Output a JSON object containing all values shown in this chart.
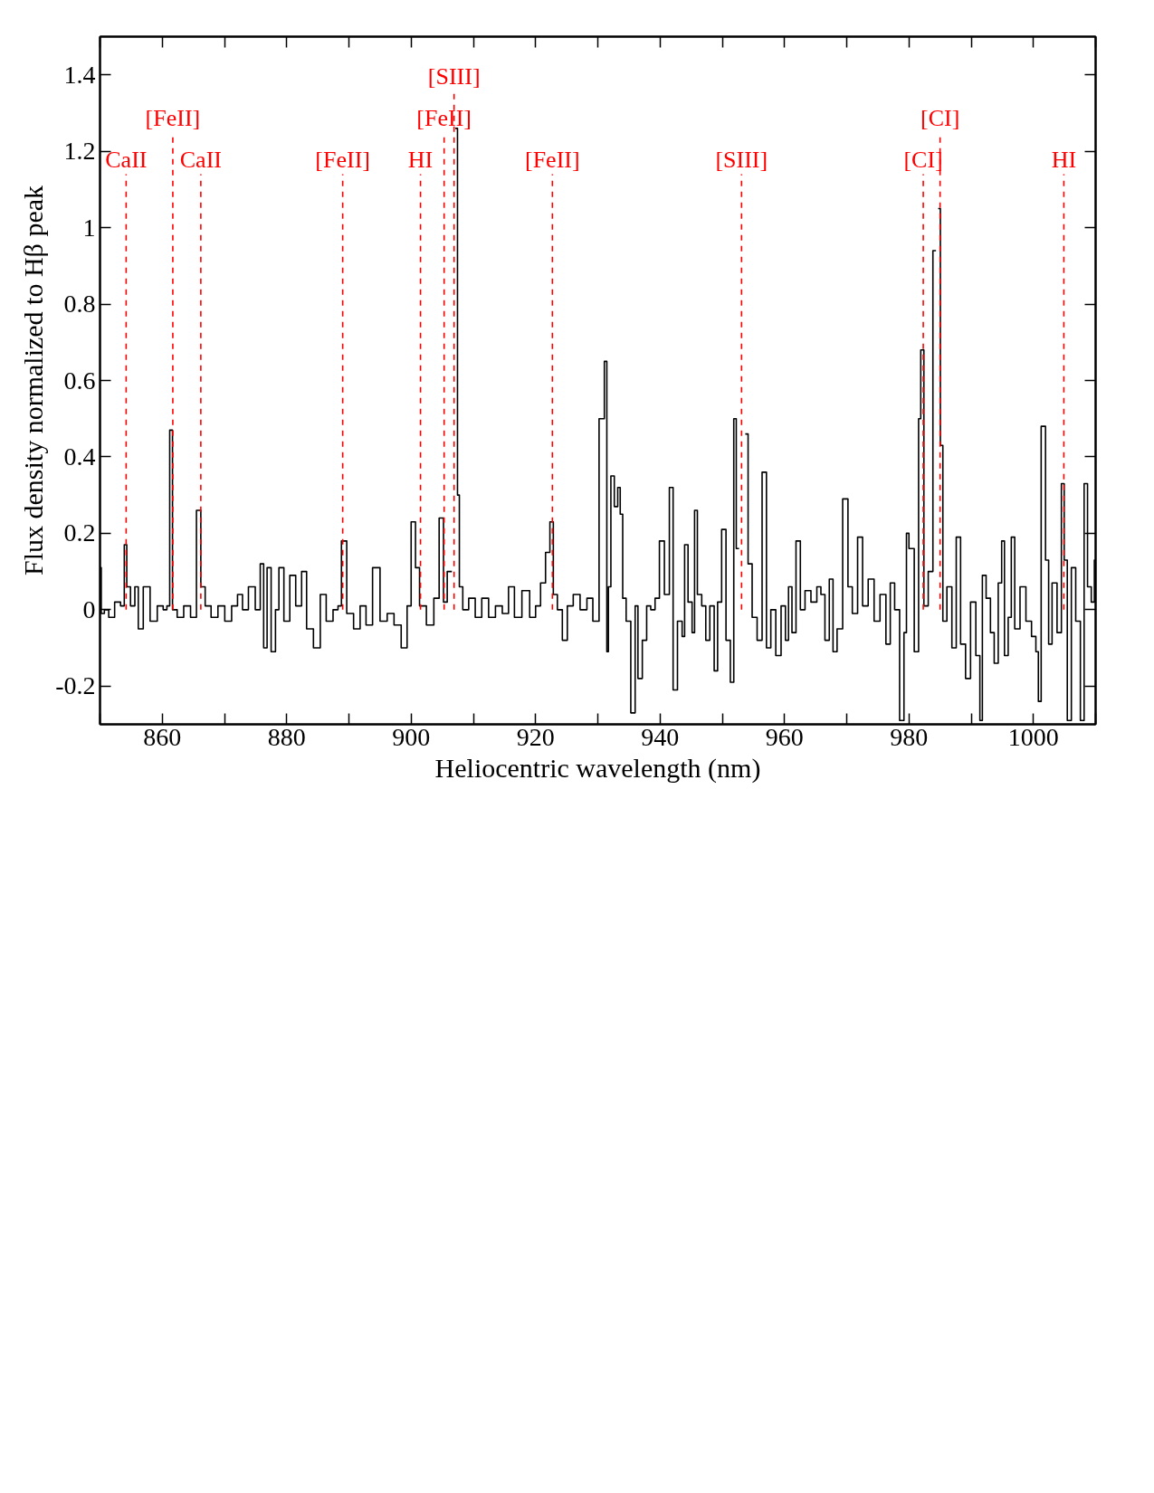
{
  "chart_data": {
    "type": "step",
    "xlabel": "Heliocentric wavelength (nm)",
    "ylabel": "Flux density normalized to Hβ peak",
    "xlim": [
      850,
      1010
    ],
    "ylim": [
      -0.3,
      1.5
    ],
    "xticks": [
      {
        "value": 850,
        "label": null
      },
      860,
      {
        "value": 870,
        "label": null
      },
      880,
      {
        "value": 890,
        "label": null
      },
      900,
      {
        "value": 910,
        "label": null
      },
      920,
      {
        "value": 930,
        "label": null
      },
      940,
      {
        "value": 950,
        "label": null
      },
      960,
      {
        "value": 970,
        "label": null
      },
      980,
      {
        "value": 990,
        "label": null
      },
      1000,
      {
        "value": 1010,
        "label": null
      }
    ],
    "yticks": [
      -0.2,
      0,
      0.2,
      0.4,
      0.6,
      0.8,
      1,
      1.2,
      1.4
    ],
    "grid": false,
    "series": [
      {
        "color": "#000000",
        "x": [
          850.0,
          850.4,
          851.0,
          851.8,
          852.9,
          853.7,
          854.1,
          854.5,
          855.3,
          855.9,
          856.4,
          857.5,
          858.6,
          859.8,
          860.5,
          861.0,
          861.4,
          861.9,
          862.9,
          864.0,
          865.1,
          865.9,
          866.5,
          867.3,
          868.4,
          869.5,
          870.6,
          871.7,
          872.5,
          873.3,
          874.4,
          875.5,
          876.0,
          876.6,
          877.1,
          877.9,
          878.5,
          879.0,
          880.1,
          880.9,
          882.0,
          882.8,
          883.6,
          885.0,
          885.8,
          886.9,
          888.0,
          888.5,
          889.1,
          890.2,
          891.3,
          892.3,
          893.2,
          894.4,
          895.6,
          896.7,
          897.8,
          899.0,
          899.7,
          900.3,
          901.1,
          901.6,
          903.3,
          904.0,
          905.0,
          905.4,
          906.2,
          906.9,
          907.3,
          907.6,
          907.9,
          908.7,
          909.8,
          910.8,
          911.9,
          913.0,
          914.1,
          915.2,
          916.1,
          917.1,
          918.5,
          919.6,
          920.4,
          921.2,
          922.0,
          922.6,
          923.1,
          923.9,
          924.7,
          925.5,
          926.6,
          927.7,
          928.8,
          929.6,
          930.8,
          931.3,
          931.6,
          931.8,
          932.4,
          932.9,
          933.5,
          933.7,
          934.3,
          934.8,
          935.8,
          936.2,
          936.7,
          937.6,
          938.1,
          938.9,
          939.5,
          940.3,
          941.1,
          941.9,
          942.3,
          943.3,
          943.8,
          944.1,
          944.9,
          945.4,
          945.7,
          946.3,
          947.1,
          947.6,
          948.4,
          949.0,
          949.5,
          950.3,
          950.9,
          951.7,
          952.0,
          952.5,
          952.9,
          953.5,
          953.9,
          954.4,
          955.2,
          956.0,
          956.8,
          957.4,
          958.2,
          959.0,
          959.9,
          960.4,
          960.9,
          961.5,
          962.2,
          962.9,
          963.7,
          964.8,
          965.6,
          966.1,
          966.9,
          967.5,
          968.1,
          968.8,
          969.9,
          970.5,
          971.3,
          972.2,
          972.9,
          974.0,
          974.8,
          975.9,
          976.7,
          977.3,
          978.1,
          978.9,
          979.5,
          979.7,
          980.3,
          981.4,
          981.7,
          982.1,
          982.7,
          983.5,
          984.2,
          984.5,
          984.9,
          985.2,
          985.7,
          986.5,
          987.3,
          987.9,
          988.7,
          989.5,
          990.3,
          991.2,
          991.6,
          992.0,
          992.8,
          993.4,
          994.0,
          994.7,
          995.1,
          995.6,
          996.3,
          996.6,
          997.4,
          998.3,
          999.3,
          1000.1,
          1000.7,
          1000.9,
          1001.6,
          1002.3,
          1002.6,
          1003.4,
          1004.2,
          1004.8,
          1005.1,
          1005.8,
          1006.4,
          1007.2,
          1007.9,
          1008.4,
          1009.0,
          1009.6,
          1010.0
        ],
        "values": [
          0.11,
          -0.01,
          0.0,
          -0.02,
          0.02,
          0.01,
          0.17,
          0.06,
          0.01,
          0.06,
          -0.05,
          0.06,
          -0.03,
          0.01,
          0.0,
          0.01,
          0.47,
          0.0,
          -0.02,
          0.01,
          -0.02,
          0.26,
          0.06,
          0.01,
          -0.02,
          0.01,
          -0.03,
          0.01,
          0.04,
          0.0,
          0.06,
          0.0,
          0.12,
          -0.1,
          0.11,
          -0.11,
          0.0,
          0.11,
          -0.03,
          0.09,
          0.01,
          0.1,
          -0.05,
          -0.1,
          0.04,
          -0.03,
          0.0,
          0.01,
          0.18,
          -0.01,
          -0.05,
          0.01,
          -0.04,
          0.11,
          -0.03,
          -0.01,
          -0.04,
          -0.1,
          0.01,
          0.23,
          0.11,
          0.01,
          -0.04,
          0.03,
          0.24,
          0.02,
          0.1,
          null,
          1.26,
          0.3,
          0.06,
          0.0,
          0.03,
          -0.02,
          0.03,
          -0.02,
          0.01,
          -0.01,
          0.06,
          -0.02,
          0.05,
          -0.02,
          0.01,
          0.07,
          0.15,
          0.23,
          0.04,
          0.0,
          -0.08,
          0.01,
          0.04,
          0.0,
          0.03,
          -0.03,
          0.5,
          0.65,
          -0.11,
          0.06,
          0.35,
          0.27,
          0.32,
          0.25,
          0.03,
          -0.03,
          -0.27,
          0.01,
          -0.18,
          -0.08,
          0.01,
          0.0,
          0.03,
          0.18,
          0.04,
          0.32,
          -0.21,
          -0.03,
          -0.07,
          0.17,
          0.02,
          -0.06,
          0.26,
          0.04,
          0.01,
          -0.08,
          0.01,
          -0.16,
          0.02,
          0.21,
          -0.08,
          -0.19,
          0.5,
          0.16,
          null,
          null,
          0.46,
          0.12,
          -0.02,
          -0.08,
          0.36,
          -0.1,
          0.0,
          -0.12,
          0.01,
          -0.08,
          0.06,
          -0.06,
          0.18,
          0.0,
          0.05,
          0.02,
          0.06,
          0.04,
          -0.08,
          0.08,
          -0.11,
          -0.05,
          0.29,
          0.06,
          -0.01,
          0.19,
          0.01,
          0.08,
          -0.03,
          0.04,
          -0.09,
          0.07,
          0.0,
          -0.29,
          -0.06,
          0.2,
          0.16,
          -0.11,
          0.5,
          0.68,
          0.01,
          0.1,
          0.94,
          null,
          1.05,
          0.43,
          -0.03,
          0.06,
          -0.1,
          0.19,
          -0.09,
          -0.18,
          0.02,
          -0.12,
          -0.29,
          0.09,
          0.03,
          -0.06,
          -0.14,
          0.07,
          0.18,
          -0.12,
          -0.02,
          0.19,
          -0.05,
          0.06,
          -0.03,
          -0.07,
          -0.11,
          -0.24,
          0.48,
          0.13,
          -0.09,
          0.07,
          -0.06,
          0.33,
          0.13,
          -0.29,
          0.11,
          -0.03,
          -0.29,
          0.33,
          0.06,
          0.02,
          0.13
        ]
      }
    ],
    "ref_lines": [
      {
        "axis": "x",
        "value": 854.2,
        "label": "CaII",
        "color": "#ff0000",
        "line_style": "dashed"
      },
      {
        "axis": "x",
        "value": 861.7,
        "label": "[FeII]",
        "color": "#ff0000",
        "line_style": "dashed"
      },
      {
        "axis": "x",
        "value": 866.2,
        "label": "CaII",
        "color": "#ff0000",
        "line_style": "dashed"
      },
      {
        "axis": "x",
        "value": 889.0,
        "label": "[FeII]",
        "color": "#ff0000",
        "line_style": "dashed"
      },
      {
        "axis": "x",
        "value": 901.5,
        "label": "HI",
        "color": "#ff0000",
        "line_style": "dashed"
      },
      {
        "axis": "x",
        "value": 905.3,
        "label": "[FeII]",
        "color": "#ff0000",
        "line_style": "dashed"
      },
      {
        "axis": "x",
        "value": 906.9,
        "label": "[SIII]",
        "color": "#ff0000",
        "line_style": "dashed"
      },
      {
        "axis": "x",
        "value": 922.7,
        "label": "[FeII]",
        "color": "#ff0000",
        "line_style": "dashed"
      },
      {
        "axis": "x",
        "value": 953.1,
        "label": "[SIII]",
        "color": "#ff0000",
        "line_style": "dashed"
      },
      {
        "axis": "x",
        "value": 982.3,
        "label": "[CI]",
        "color": "#ff0000",
        "line_style": "dashed"
      },
      {
        "axis": "x",
        "value": 985.0,
        "label": "[CI]",
        "color": "#ff0000",
        "line_style": "dashed"
      },
      {
        "axis": "x",
        "value": 1004.9,
        "label": "HI",
        "color": "#ff0000",
        "line_style": "dashed"
      }
    ]
  }
}
